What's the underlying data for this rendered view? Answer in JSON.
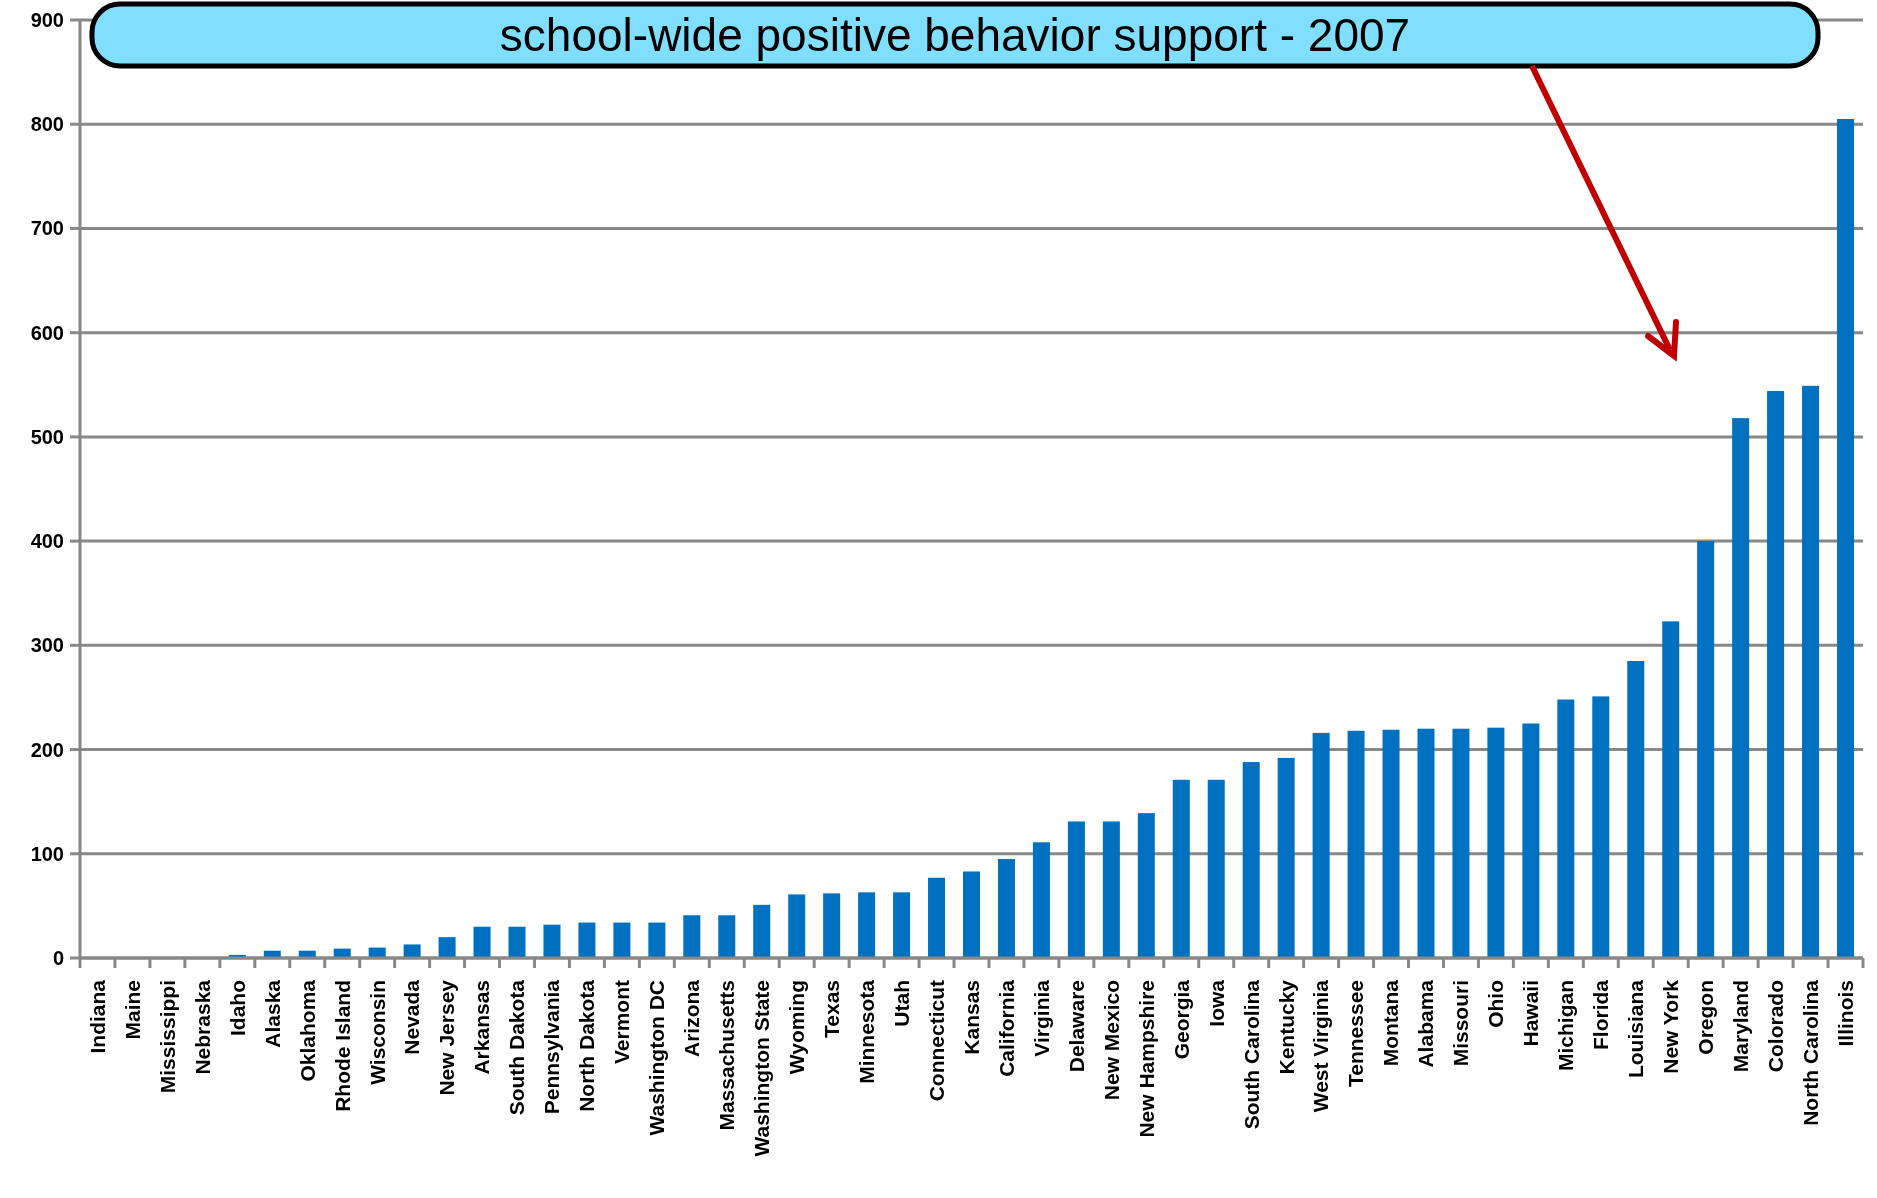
{
  "chart_data": {
    "type": "bar",
    "title": "school-wide positive behavior support - 2007",
    "categories": [
      "Indiana",
      "Maine",
      "Mississippi",
      "Nebraska",
      "Idaho",
      "Alaska",
      "Oklahoma",
      "Rhode Island",
      "Wisconsin",
      "Nevada",
      "New Jersey",
      "Arkansas",
      "South Dakota",
      "Pennsylvania",
      "North Dakota",
      "Vermont",
      "Washington DC",
      "Arizona",
      "Massachusetts",
      "Washington State",
      "Wyoming",
      "Texas",
      "Minnesota",
      "Utah",
      "Connecticut",
      "Kansas",
      "California",
      "Virginia",
      "Delaware",
      "New Mexico",
      "New Hampshire",
      "Georgia",
      "Iowa",
      "South Carolina",
      "Kentucky",
      "West Virginia",
      "Tennessee",
      "Montana",
      "Alabama",
      "Missouri",
      "Ohio",
      "Hawaii",
      "Michigan",
      "Florida",
      "Louisiana",
      "New York",
      "Oregon",
      "Maryland",
      "Colorado",
      "North Carolina",
      "Illinois"
    ],
    "values": [
      0,
      0,
      0,
      0,
      3,
      7,
      7,
      9,
      10,
      13,
      20,
      30,
      30,
      32,
      34,
      34,
      34,
      41,
      41,
      51,
      61,
      62,
      63,
      63,
      77,
      83,
      95,
      111,
      131,
      131,
      139,
      171,
      171,
      188,
      192,
      216,
      218,
      219,
      220,
      220,
      221,
      225,
      248,
      251,
      285,
      323,
      400,
      518,
      544,
      549,
      805
    ],
    "color": "#0070c0",
    "ylim": [
      0,
      900
    ],
    "yticks": [
      0,
      100,
      200,
      300,
      400,
      500,
      600,
      700,
      800,
      900
    ],
    "grid": "y"
  }
}
